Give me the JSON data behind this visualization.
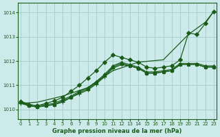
{
  "xlabel_label": "Graphe pression niveau de la mer (hPa)",
  "x_ticks": [
    0,
    1,
    2,
    3,
    4,
    5,
    6,
    7,
    8,
    9,
    10,
    11,
    12,
    13,
    14,
    15,
    16,
    17,
    18,
    19,
    20,
    21,
    22,
    23
  ],
  "ylim": [
    1009.6,
    1014.4
  ],
  "xlim": [
    -0.3,
    23.3
  ],
  "yticks": [
    1010,
    1011,
    1012,
    1013,
    1014
  ],
  "background_color": "#cceaea",
  "grid_color": "#aacfcf",
  "line_color": "#1a5c1a",
  "lines": [
    {
      "x": [
        0,
        1,
        2,
        3,
        4,
        5,
        6,
        7,
        8,
        9,
        10,
        11,
        12,
        13,
        14,
        15,
        16,
        17,
        18,
        19,
        20,
        21,
        22,
        23
      ],
      "y": [
        1010.3,
        1010.2,
        1010.15,
        1010.25,
        1010.35,
        1010.5,
        1010.75,
        1011.0,
        1011.3,
        1011.6,
        1011.95,
        1012.25,
        1012.15,
        1012.05,
        1011.95,
        1011.75,
        1011.7,
        1011.75,
        1011.8,
        1012.05,
        1013.15,
        1013.1,
        1013.55,
        1014.05
      ],
      "marker": "D",
      "markersize": 3.0,
      "lw": 0.9
    },
    {
      "x": [
        0,
        2,
        5,
        8,
        11,
        14,
        17,
        20,
        22,
        23
      ],
      "y": [
        1010.25,
        1010.3,
        1010.55,
        1010.9,
        1011.6,
        1011.95,
        1012.05,
        1013.1,
        1013.6,
        1014.05
      ],
      "marker": null,
      "markersize": 0,
      "lw": 0.9
    },
    {
      "x": [
        0,
        1,
        2,
        3,
        4,
        5,
        6,
        7,
        8,
        9,
        10,
        11,
        12,
        13,
        14,
        15,
        16,
        17,
        18,
        19,
        20,
        21,
        22,
        23
      ],
      "y": [
        1010.25,
        1010.15,
        1010.1,
        1010.15,
        1010.2,
        1010.3,
        1010.5,
        1010.65,
        1010.8,
        1011.05,
        1011.35,
        1011.7,
        1011.85,
        1011.8,
        1011.7,
        1011.5,
        1011.5,
        1011.55,
        1011.6,
        1011.85,
        1011.85,
        1011.85,
        1011.75,
        1011.75
      ],
      "marker": "+",
      "markersize": 4.0,
      "lw": 0.9
    },
    {
      "x": [
        0,
        1,
        2,
        3,
        4,
        5,
        6,
        7,
        8,
        9,
        10,
        11,
        12,
        13,
        14,
        15,
        16,
        17,
        18,
        19,
        20,
        21,
        22,
        23
      ],
      "y": [
        1010.35,
        1010.2,
        1010.15,
        1010.2,
        1010.25,
        1010.4,
        1010.55,
        1010.75,
        1010.9,
        1011.15,
        1011.45,
        1011.8,
        1011.95,
        1011.85,
        1011.75,
        1011.55,
        1011.55,
        1011.6,
        1011.65,
        1011.9,
        1011.9,
        1011.9,
        1011.8,
        1011.8
      ],
      "marker": "^",
      "markersize": 3.0,
      "lw": 0.9
    },
    {
      "x": [
        0,
        1,
        2,
        3,
        4,
        5,
        6,
        7,
        8,
        9,
        10,
        11,
        12,
        13,
        14,
        15,
        16,
        17,
        18,
        19,
        20,
        21,
        22,
        23
      ],
      "y": [
        1010.3,
        1010.15,
        1010.1,
        1010.15,
        1010.2,
        1010.35,
        1010.5,
        1010.7,
        1010.85,
        1011.1,
        1011.4,
        1011.75,
        1011.9,
        1011.8,
        1011.7,
        1011.5,
        1011.5,
        1011.55,
        1011.6,
        1011.85,
        1011.85,
        1011.85,
        1011.75,
        1011.75
      ],
      "marker": "s",
      "markersize": 2.5,
      "lw": 0.9
    }
  ]
}
